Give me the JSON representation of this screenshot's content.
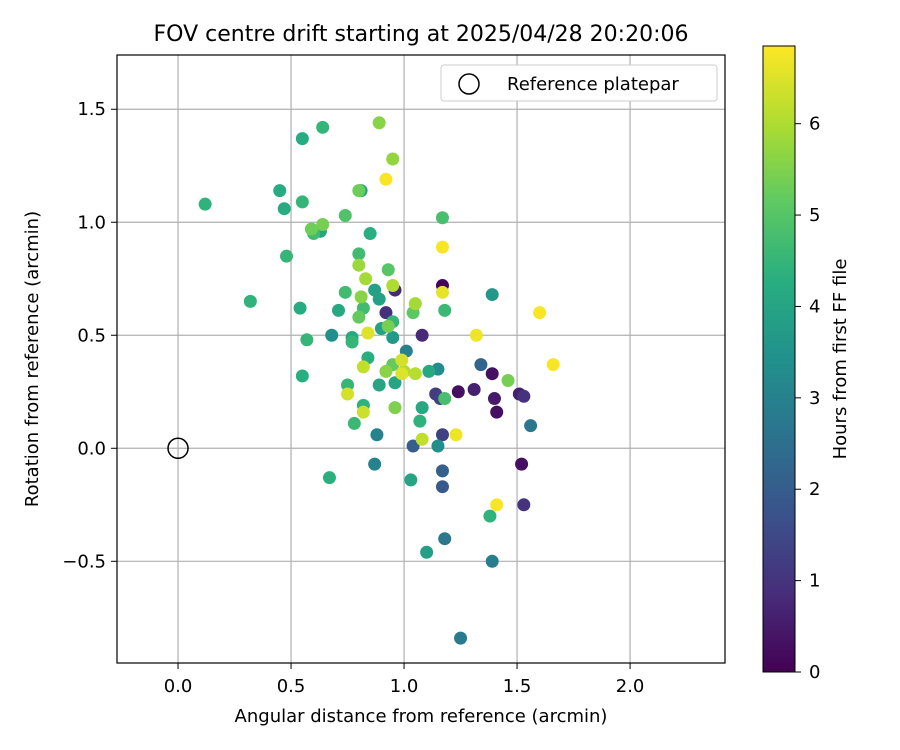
{
  "chart_data": {
    "type": "scatter",
    "title": "FOV centre drift starting at 2025/04/28 20:20:06",
    "xlabel": "Angular distance from reference (arcmin)",
    "ylabel": "Rotation from reference (arcmin)",
    "xlim": [
      -0.27,
      2.42
    ],
    "ylim": [
      -0.95,
      1.74
    ],
    "xticks": [
      0.0,
      0.5,
      1.0,
      1.5,
      2.0
    ],
    "yticks": [
      -0.5,
      0.0,
      0.5,
      1.0,
      1.5
    ],
    "xtick_labels": [
      "0.0",
      "0.5",
      "1.0",
      "1.5",
      "2.0"
    ],
    "ytick_labels": [
      "−0.5",
      "0.0",
      "0.5",
      "1.0",
      "1.5"
    ],
    "grid": true,
    "colormap": "viridis",
    "colorbar": {
      "label": "Hours from first FF file",
      "range": [
        0,
        6.85
      ],
      "ticks": [
        0,
        1,
        2,
        3,
        4,
        5,
        6
      ],
      "tick_labels": [
        "0",
        "1",
        "2",
        "3",
        "4",
        "5",
        "6"
      ]
    },
    "legend": {
      "placement": "top-right",
      "entries": [
        {
          "label": "Reference platepar",
          "marker": "open-circle"
        }
      ]
    },
    "reference": {
      "x": 0.0,
      "y": 0.0
    },
    "series": [
      {
        "points": [
          {
            "x": 1.17,
            "y": 0.72,
            "t": 0.1
          },
          {
            "x": 1.39,
            "y": 0.33,
            "t": 0.3
          },
          {
            "x": 1.24,
            "y": 0.25,
            "t": 0.3
          },
          {
            "x": 1.41,
            "y": 0.16,
            "t": 0.3
          },
          {
            "x": 1.52,
            "y": -0.07,
            "t": 0.3
          },
          {
            "x": 1.4,
            "y": 0.22,
            "t": 0.5
          },
          {
            "x": 1.31,
            "y": 0.26,
            "t": 0.6
          },
          {
            "x": 1.51,
            "y": 0.24,
            "t": 0.6
          },
          {
            "x": 1.08,
            "y": 0.5,
            "t": 0.8
          },
          {
            "x": 0.96,
            "y": 0.7,
            "t": 0.8
          },
          {
            "x": 0.92,
            "y": 0.6,
            "t": 0.9
          },
          {
            "x": 1.53,
            "y": 0.23,
            "t": 1.0
          },
          {
            "x": 1.53,
            "y": -0.25,
            "t": 1.0
          },
          {
            "x": 1.14,
            "y": 0.24,
            "t": 1.2
          },
          {
            "x": 1.17,
            "y": 0.06,
            "t": 1.3
          },
          {
            "x": 1.16,
            "y": 0.22,
            "t": 1.3
          },
          {
            "x": 1.17,
            "y": -0.17,
            "t": 1.9
          },
          {
            "x": 1.04,
            "y": 0.01,
            "t": 2.0
          },
          {
            "x": 1.17,
            "y": -0.1,
            "t": 2.1
          },
          {
            "x": 1.34,
            "y": 0.37,
            "t": 2.2
          },
          {
            "x": 1.56,
            "y": 0.1,
            "t": 2.7
          },
          {
            "x": 1.18,
            "y": -0.4,
            "t": 2.7
          },
          {
            "x": 1.39,
            "y": -0.5,
            "t": 2.9
          },
          {
            "x": 1.25,
            "y": -0.84,
            "t": 2.8
          },
          {
            "x": 1.01,
            "y": 0.43,
            "t": 3.0
          },
          {
            "x": 0.88,
            "y": 0.06,
            "t": 3.0
          },
          {
            "x": 0.87,
            "y": -0.07,
            "t": 3.0
          },
          {
            "x": 1.15,
            "y": 0.35,
            "t": 3.3
          },
          {
            "x": 1.15,
            "y": 0.01,
            "t": 3.4
          },
          {
            "x": 0.68,
            "y": 0.5,
            "t": 3.4
          },
          {
            "x": 1.39,
            "y": 0.68,
            "t": 3.6
          },
          {
            "x": 1.1,
            "y": -0.46,
            "t": 3.8
          },
          {
            "x": 0.95,
            "y": 0.49,
            "t": 3.7
          },
          {
            "x": 0.87,
            "y": 0.7,
            "t": 3.9
          },
          {
            "x": 0.89,
            "y": 0.66,
            "t": 3.9
          },
          {
            "x": 0.9,
            "y": 0.53,
            "t": 3.9
          },
          {
            "x": 1.03,
            "y": -0.14,
            "t": 4.0
          },
          {
            "x": 0.89,
            "y": 0.28,
            "t": 4.0
          },
          {
            "x": 0.96,
            "y": 0.29,
            "t": 4.0
          },
          {
            "x": 0.81,
            "y": 1.14,
            "t": 4.0
          },
          {
            "x": 0.63,
            "y": 0.96,
            "t": 4.0
          },
          {
            "x": 1.08,
            "y": 0.18,
            "t": 4.1
          },
          {
            "x": 1.11,
            "y": 0.34,
            "t": 4.1
          },
          {
            "x": 0.71,
            "y": 0.61,
            "t": 4.1
          },
          {
            "x": 0.77,
            "y": 0.49,
            "t": 4.1
          },
          {
            "x": 0.55,
            "y": 1.37,
            "t": 4.2
          },
          {
            "x": 0.45,
            "y": 1.14,
            "t": 4.2
          },
          {
            "x": 0.47,
            "y": 1.06,
            "t": 4.2
          },
          {
            "x": 0.54,
            "y": 0.62,
            "t": 4.2
          },
          {
            "x": 0.85,
            "y": 0.95,
            "t": 4.3
          },
          {
            "x": 0.84,
            "y": 0.4,
            "t": 4.3
          },
          {
            "x": 0.55,
            "y": 0.32,
            "t": 4.3
          },
          {
            "x": 0.67,
            "y": -0.13,
            "t": 4.3
          },
          {
            "x": 1.07,
            "y": 0.12,
            "t": 4.4
          },
          {
            "x": 0.82,
            "y": 0.19,
            "t": 4.4
          },
          {
            "x": 0.32,
            "y": 0.65,
            "t": 4.4
          },
          {
            "x": 0.12,
            "y": 1.08,
            "t": 4.4
          },
          {
            "x": 1.38,
            "y": -0.3,
            "t": 4.4
          },
          {
            "x": 0.75,
            "y": 0.28,
            "t": 4.5
          },
          {
            "x": 0.64,
            "y": 1.42,
            "t": 4.5
          },
          {
            "x": 0.55,
            "y": 1.09,
            "t": 4.5
          },
          {
            "x": 0.48,
            "y": 0.85,
            "t": 4.5
          },
          {
            "x": 0.57,
            "y": 0.48,
            "t": 4.5
          },
          {
            "x": 0.77,
            "y": 0.47,
            "t": 4.5
          },
          {
            "x": 0.95,
            "y": 0.56,
            "t": 4.5
          },
          {
            "x": 0.78,
            "y": 0.11,
            "t": 4.6
          },
          {
            "x": 1.18,
            "y": 0.61,
            "t": 4.6
          },
          {
            "x": 0.74,
            "y": 0.69,
            "t": 4.7
          },
          {
            "x": 0.82,
            "y": 0.62,
            "t": 4.7
          },
          {
            "x": 0.6,
            "y": 0.95,
            "t": 4.7
          },
          {
            "x": 0.8,
            "y": 0.86,
            "t": 4.7
          },
          {
            "x": 1.18,
            "y": 0.22,
            "t": 4.8
          },
          {
            "x": 1.17,
            "y": 1.02,
            "t": 4.8
          },
          {
            "x": 0.74,
            "y": 1.03,
            "t": 4.9
          },
          {
            "x": 0.93,
            "y": 0.79,
            "t": 5.0
          },
          {
            "x": 1.04,
            "y": 0.6,
            "t": 5.1
          },
          {
            "x": 0.8,
            "y": 0.58,
            "t": 5.2
          },
          {
            "x": 0.95,
            "y": 0.37,
            "t": 5.2
          },
          {
            "x": 0.59,
            "y": 0.97,
            "t": 5.3
          },
          {
            "x": 0.8,
            "y": 1.14,
            "t": 5.3
          },
          {
            "x": 0.64,
            "y": 0.99,
            "t": 5.4
          },
          {
            "x": 1.46,
            "y": 0.3,
            "t": 5.4
          },
          {
            "x": 0.93,
            "y": 0.54,
            "t": 5.4
          },
          {
            "x": 0.96,
            "y": 0.18,
            "t": 5.5
          },
          {
            "x": 0.92,
            "y": 0.34,
            "t": 5.6
          },
          {
            "x": 0.81,
            "y": 0.67,
            "t": 5.6
          },
          {
            "x": 0.89,
            "y": 1.44,
            "t": 5.6
          },
          {
            "x": 0.95,
            "y": 1.28,
            "t": 5.7
          },
          {
            "x": 0.8,
            "y": 0.81,
            "t": 5.8
          },
          {
            "x": 0.83,
            "y": 0.75,
            "t": 5.9
          },
          {
            "x": 1.05,
            "y": 0.64,
            "t": 5.9
          },
          {
            "x": 0.95,
            "y": 0.72,
            "t": 6.0
          },
          {
            "x": 1.0,
            "y": 0.34,
            "t": 6.0
          },
          {
            "x": 1.05,
            "y": 0.33,
            "t": 6.1
          },
          {
            "x": 0.82,
            "y": 0.36,
            "t": 6.2
          },
          {
            "x": 1.08,
            "y": 0.04,
            "t": 6.2
          },
          {
            "x": 0.82,
            "y": 0.16,
            "t": 6.3
          },
          {
            "x": 0.75,
            "y": 0.24,
            "t": 6.4
          },
          {
            "x": 0.99,
            "y": 0.39,
            "t": 6.4
          },
          {
            "x": 0.99,
            "y": 0.33,
            "t": 6.5
          },
          {
            "x": 0.84,
            "y": 0.51,
            "t": 6.5
          },
          {
            "x": 1.17,
            "y": 0.69,
            "t": 6.6
          },
          {
            "x": 1.32,
            "y": 0.5,
            "t": 6.7
          },
          {
            "x": 1.23,
            "y": 0.06,
            "t": 6.7
          },
          {
            "x": 1.17,
            "y": 0.89,
            "t": 6.8
          },
          {
            "x": 0.92,
            "y": 1.19,
            "t": 6.8
          },
          {
            "x": 1.41,
            "y": -0.25,
            "t": 6.8
          },
          {
            "x": 1.6,
            "y": 0.6,
            "t": 6.8
          },
          {
            "x": 1.66,
            "y": 0.37,
            "t": 6.8
          }
        ]
      }
    ]
  }
}
